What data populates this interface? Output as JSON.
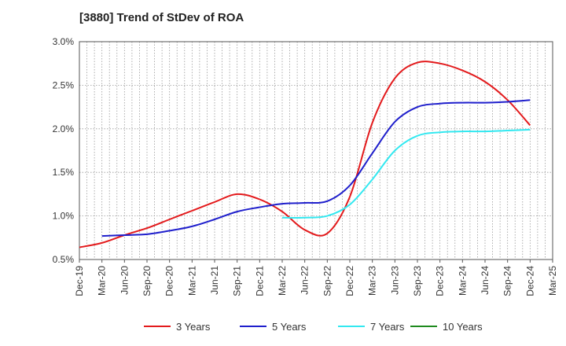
{
  "chart_data": {
    "type": "line",
    "title": "[3880]  Trend of StDev of ROA",
    "xlabel": "",
    "ylabel": "",
    "y_ticks": [
      "0.5%",
      "1.0%",
      "1.5%",
      "2.0%",
      "2.5%",
      "3.0%"
    ],
    "ylim": [
      0.5,
      3.0
    ],
    "x_ticks": [
      "Dec-19",
      "Mar-20",
      "Jun-20",
      "Sep-20",
      "Dec-20",
      "Mar-21",
      "Jun-21",
      "Sep-21",
      "Dec-21",
      "Mar-22",
      "Jun-22",
      "Sep-22",
      "Dec-22",
      "Mar-23",
      "Jun-23",
      "Sep-23",
      "Dec-23",
      "Mar-24",
      "Jun-24",
      "Sep-24",
      "Dec-24",
      "Mar-25"
    ],
    "grid": true,
    "legend_position": "bottom",
    "series": [
      {
        "name": "3 Years",
        "color": "#e31a1c",
        "points": [
          [
            "Dec-19",
            0.64
          ],
          [
            "Mar-20",
            0.69
          ],
          [
            "Jun-20",
            0.78
          ],
          [
            "Sep-20",
            0.86
          ],
          [
            "Dec-20",
            0.96
          ],
          [
            "Mar-21",
            1.06
          ],
          [
            "Jun-21",
            1.16
          ],
          [
            "Sep-21",
            1.25
          ],
          [
            "Dec-21",
            1.19
          ],
          [
            "Mar-22",
            1.05
          ],
          [
            "Jun-22",
            0.84
          ],
          [
            "Sep-22",
            0.8
          ],
          [
            "Dec-22",
            1.22
          ],
          [
            "Mar-23",
            2.07
          ],
          [
            "Jun-23",
            2.58
          ],
          [
            "Sep-23",
            2.76
          ],
          [
            "Dec-23",
            2.75
          ],
          [
            "Mar-24",
            2.67
          ],
          [
            "Jun-24",
            2.54
          ],
          [
            "Sep-24",
            2.33
          ],
          [
            "Dec-24",
            2.04
          ]
        ]
      },
      {
        "name": "5 Years",
        "color": "#1f1fcc",
        "points": [
          [
            "Mar-20",
            0.77
          ],
          [
            "Jun-20",
            0.78
          ],
          [
            "Sep-20",
            0.79
          ],
          [
            "Dec-20",
            0.83
          ],
          [
            "Mar-21",
            0.88
          ],
          [
            "Jun-21",
            0.96
          ],
          [
            "Sep-21",
            1.05
          ],
          [
            "Dec-21",
            1.1
          ],
          [
            "Mar-22",
            1.14
          ],
          [
            "Jun-22",
            1.15
          ],
          [
            "Sep-22",
            1.17
          ],
          [
            "Dec-22",
            1.35
          ],
          [
            "Mar-23",
            1.72
          ],
          [
            "Jun-23",
            2.08
          ],
          [
            "Sep-23",
            2.25
          ],
          [
            "Dec-23",
            2.29
          ],
          [
            "Mar-24",
            2.3
          ],
          [
            "Jun-24",
            2.3
          ],
          [
            "Sep-24",
            2.31
          ],
          [
            "Dec-24",
            2.33
          ]
        ]
      },
      {
        "name": "7 Years",
        "color": "#33e8f0",
        "points": [
          [
            "Mar-22",
            0.98
          ],
          [
            "Jun-22",
            0.98
          ],
          [
            "Sep-22",
            1.0
          ],
          [
            "Dec-22",
            1.13
          ],
          [
            "Mar-23",
            1.42
          ],
          [
            "Jun-23",
            1.75
          ],
          [
            "Sep-23",
            1.92
          ],
          [
            "Dec-23",
            1.96
          ],
          [
            "Mar-24",
            1.97
          ],
          [
            "Jun-24",
            1.97
          ],
          [
            "Sep-24",
            1.98
          ],
          [
            "Dec-24",
            1.99
          ]
        ]
      },
      {
        "name": "10 Years",
        "color": "#1e8a1e",
        "points": []
      }
    ]
  }
}
